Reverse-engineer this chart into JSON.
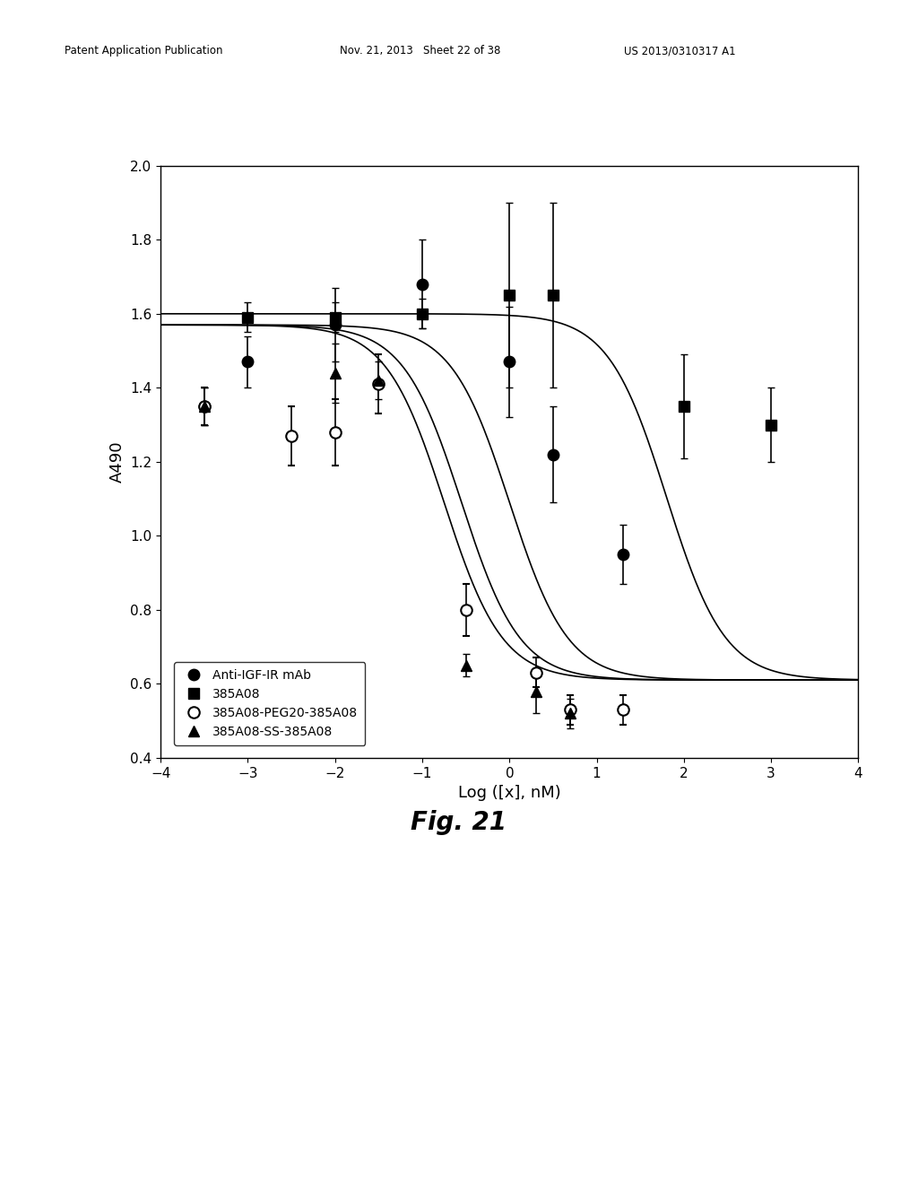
{
  "title": "Fig. 21",
  "xlabel": "Log ([x], nM)",
  "ylabel": "A490",
  "xlim": [
    -4,
    4
  ],
  "ylim": [
    0.4,
    2.0
  ],
  "xticks": [
    -4,
    -3,
    -2,
    -1,
    0,
    1,
    2,
    3,
    4
  ],
  "yticks": [
    0.4,
    0.6,
    0.8,
    1.0,
    1.2,
    1.4,
    1.6,
    1.8,
    2.0
  ],
  "header_text": "Patent Application Publication",
  "header_date": "Nov. 21, 2013   Sheet 22 of 38",
  "header_number": "US 2013/0310317 A1",
  "series": {
    "anti_igf": {
      "label": "Anti-IGF-IR mAb",
      "marker": "o",
      "fillstyle": "full",
      "x": [
        -3.5,
        -3.0,
        -2.0,
        -1.0,
        0.0,
        0.5,
        1.3
      ],
      "y": [
        1.35,
        1.47,
        1.57,
        1.68,
        1.47,
        1.22,
        0.95
      ],
      "yerr": [
        0.05,
        0.07,
        0.1,
        0.12,
        0.15,
        0.13,
        0.08
      ],
      "fit_ec50": 0.0,
      "fit_top": 1.57,
      "fit_bottom": 0.61,
      "fit_hillslope": 1.3
    },
    "385A08": {
      "label": "385A08",
      "marker": "s",
      "fillstyle": "full",
      "x": [
        -3.0,
        -2.0,
        -1.0,
        0.0,
        0.5,
        2.0,
        3.0
      ],
      "y": [
        1.59,
        1.59,
        1.6,
        1.65,
        1.65,
        1.35,
        1.3
      ],
      "yerr": [
        0.04,
        0.04,
        0.04,
        0.25,
        0.25,
        0.14,
        0.1
      ],
      "fit_ec50": 1.8,
      "fit_top": 1.6,
      "fit_bottom": 0.61,
      "fit_hillslope": 1.3
    },
    "peg20": {
      "label": "385A08-PEG20-385A08",
      "marker": "o",
      "fillstyle": "none",
      "x": [
        -3.5,
        -2.5,
        -2.0,
        -1.5,
        -0.5,
        0.3,
        0.7,
        1.3
      ],
      "y": [
        1.35,
        1.27,
        1.28,
        1.41,
        0.8,
        0.63,
        0.53,
        0.53
      ],
      "yerr": [
        0.05,
        0.08,
        0.09,
        0.08,
        0.07,
        0.04,
        0.04,
        0.04
      ],
      "fit_ec50": -0.55,
      "fit_top": 1.57,
      "fit_bottom": 0.61,
      "fit_hillslope": 1.3
    },
    "ss": {
      "label": "385A08-SS-385A08",
      "marker": "^",
      "fillstyle": "full",
      "x": [
        -3.5,
        -2.0,
        -1.5,
        -0.5,
        0.3,
        0.7
      ],
      "y": [
        1.35,
        1.44,
        1.42,
        0.65,
        0.58,
        0.52
      ],
      "yerr": [
        0.05,
        0.08,
        0.05,
        0.03,
        0.06,
        0.04
      ],
      "fit_ec50": -0.75,
      "fit_top": 1.57,
      "fit_bottom": 0.61,
      "fit_hillslope": 1.3
    }
  },
  "background_color": "#ffffff",
  "plot_bg_color": "#ffffff",
  "legend_fontsize": 10,
  "axis_fontsize": 13,
  "tick_fontsize": 11,
  "title_fontsize": 20
}
